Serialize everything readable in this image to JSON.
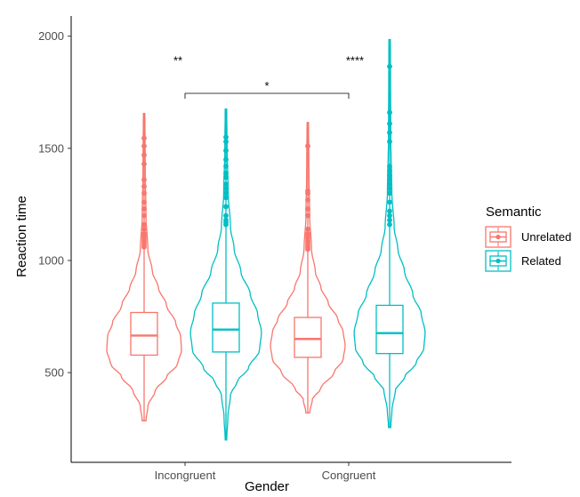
{
  "chart_data": {
    "type": "violin",
    "xlabel": "Gender",
    "ylabel": "Reaction time",
    "ylim": [
      100,
      2090
    ],
    "yticks": [
      500,
      1000,
      1500,
      2000
    ],
    "categories": [
      "Incongruent",
      "Congruent"
    ],
    "legend": {
      "title": "Semantic",
      "position": "right",
      "entries": [
        {
          "name": "Unrelated",
          "color": "#F8766D"
        },
        {
          "name": "Related",
          "color": "#00BFC4"
        }
      ]
    },
    "series": [
      {
        "name": "Unrelated",
        "color": "#F8766D",
        "groups": [
          {
            "category": "Incongruent",
            "min": 285,
            "max": 1655,
            "box": {
              "lower": 578,
              "q1": 578,
              "median": 665,
              "q3": 768,
              "upper": 1050
            },
            "outliers": [
              1060,
              1070,
              1080,
              1090,
              1100,
              1110,
              1120,
              1140,
              1160,
              1200,
              1230,
              1260,
              1300,
              1330,
              1360,
              1430,
              1470,
              1510,
              1545
            ],
            "density": [
              [
                285,
                0.05
              ],
              [
                350,
                0.1
              ],
              [
                420,
                0.3
              ],
              [
                480,
                0.6
              ],
              [
                540,
                0.9
              ],
              [
                600,
                1.0
              ],
              [
                660,
                0.98
              ],
              [
                720,
                0.85
              ],
              [
                800,
                0.6
              ],
              [
                880,
                0.38
              ],
              [
                950,
                0.22
              ],
              [
                1050,
                0.1
              ],
              [
                1200,
                0.05
              ],
              [
                1400,
                0.03
              ],
              [
                1655,
                0.02
              ]
            ]
          },
          {
            "category": "Congruent",
            "min": 320,
            "max": 1615,
            "box": {
              "lower": 568,
              "q1": 568,
              "median": 650,
              "q3": 746,
              "upper": 1050
            },
            "outliers": [
              1050,
              1060,
              1070,
              1080,
              1090,
              1100,
              1110,
              1120,
              1140,
              1200,
              1230,
              1270,
              1300,
              1310,
              1510
            ],
            "density": [
              [
                320,
                0.05
              ],
              [
                380,
                0.12
              ],
              [
                430,
                0.35
              ],
              [
                500,
                0.7
              ],
              [
                560,
                0.95
              ],
              [
                620,
                1.0
              ],
              [
                680,
                0.95
              ],
              [
                740,
                0.8
              ],
              [
                810,
                0.55
              ],
              [
                880,
                0.35
              ],
              [
                950,
                0.2
              ],
              [
                1050,
                0.1
              ],
              [
                1200,
                0.05
              ],
              [
                1400,
                0.03
              ],
              [
                1615,
                0.02
              ]
            ]
          }
        ]
      },
      {
        "name": "Related",
        "color": "#00BFC4",
        "groups": [
          {
            "category": "Incongruent",
            "min": 200,
            "max": 1675,
            "box": {
              "lower": 592,
              "q1": 592,
              "median": 692,
              "q3": 810,
              "upper": 1150
            },
            "outliers": [
              1160,
              1170,
              1180,
              1200,
              1240,
              1280,
              1300,
              1320,
              1340,
              1370,
              1390,
              1420,
              1450,
              1490,
              1530,
              1550
            ],
            "density": [
              [
                200,
                0.02
              ],
              [
                300,
                0.05
              ],
              [
                400,
                0.12
              ],
              [
                460,
                0.3
              ],
              [
                520,
                0.6
              ],
              [
                600,
                0.9
              ],
              [
                680,
                0.95
              ],
              [
                760,
                0.85
              ],
              [
                850,
                0.65
              ],
              [
                950,
                0.4
              ],
              [
                1050,
                0.22
              ],
              [
                1150,
                0.12
              ],
              [
                1300,
                0.06
              ],
              [
                1500,
                0.03
              ],
              [
                1675,
                0.02
              ]
            ]
          },
          {
            "category": "Congruent",
            "min": 255,
            "max": 1985,
            "box": {
              "lower": 585,
              "q1": 585,
              "median": 676,
              "q3": 800,
              "upper": 1150
            },
            "outliers": [
              1160,
              1180,
              1200,
              1220,
              1260,
              1300,
              1320,
              1340,
              1360,
              1380,
              1400,
              1420,
              1530,
              1570,
              1610,
              1660,
              1865
            ],
            "density": [
              [
                255,
                0.03
              ],
              [
                330,
                0.06
              ],
              [
                420,
                0.15
              ],
              [
                480,
                0.4
              ],
              [
                540,
                0.7
              ],
              [
                610,
                0.92
              ],
              [
                680,
                0.95
              ],
              [
                760,
                0.85
              ],
              [
                850,
                0.62
              ],
              [
                950,
                0.4
              ],
              [
                1050,
                0.22
              ],
              [
                1150,
                0.12
              ],
              [
                1300,
                0.06
              ],
              [
                1550,
                0.03
              ],
              [
                1985,
                0.02
              ]
            ]
          }
        ]
      }
    ],
    "annotations": [
      {
        "label": "**",
        "x_category": "Incongruent",
        "y": 1890
      },
      {
        "label": "****",
        "x_category": "Congruent",
        "y": 1890
      },
      {
        "label": "*",
        "bracket_from": "Incongruent:Related",
        "bracket_to": "Congruent:Unrelated",
        "y": 1745
      }
    ]
  }
}
